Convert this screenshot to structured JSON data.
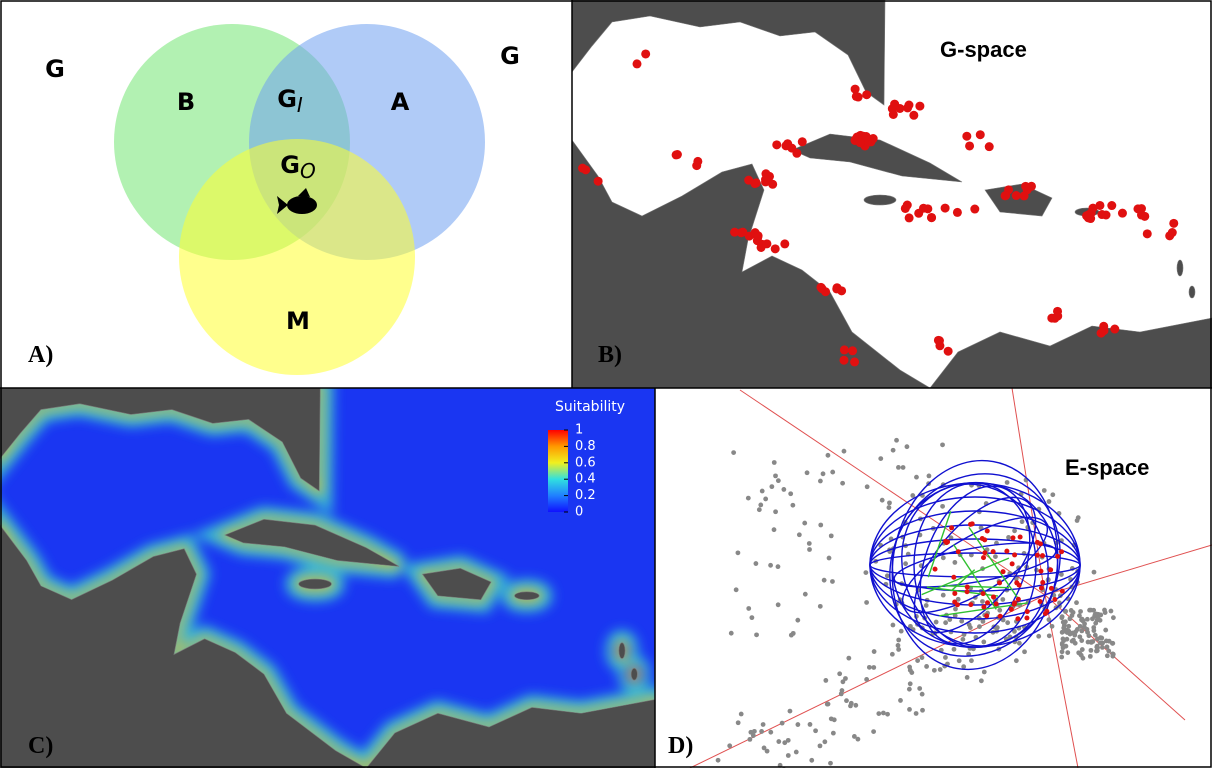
{
  "panel_a": {
    "label": "A)",
    "universe_labels": [
      "G",
      "G"
    ],
    "circles": [
      "B",
      "A",
      "M"
    ],
    "intersections": [
      {
        "base": "G",
        "sub": "I"
      },
      {
        "base": "G",
        "sub": "O"
      }
    ]
  },
  "panel_b": {
    "label": "B)",
    "title": "G-space"
  },
  "panel_c": {
    "label": "C)",
    "legend": {
      "title": "Suitability",
      "ticks": [
        1,
        0.8,
        0.6,
        0.4,
        0.2,
        0
      ]
    }
  },
  "panel_d": {
    "label": "D)",
    "title": "E-space"
  }
}
